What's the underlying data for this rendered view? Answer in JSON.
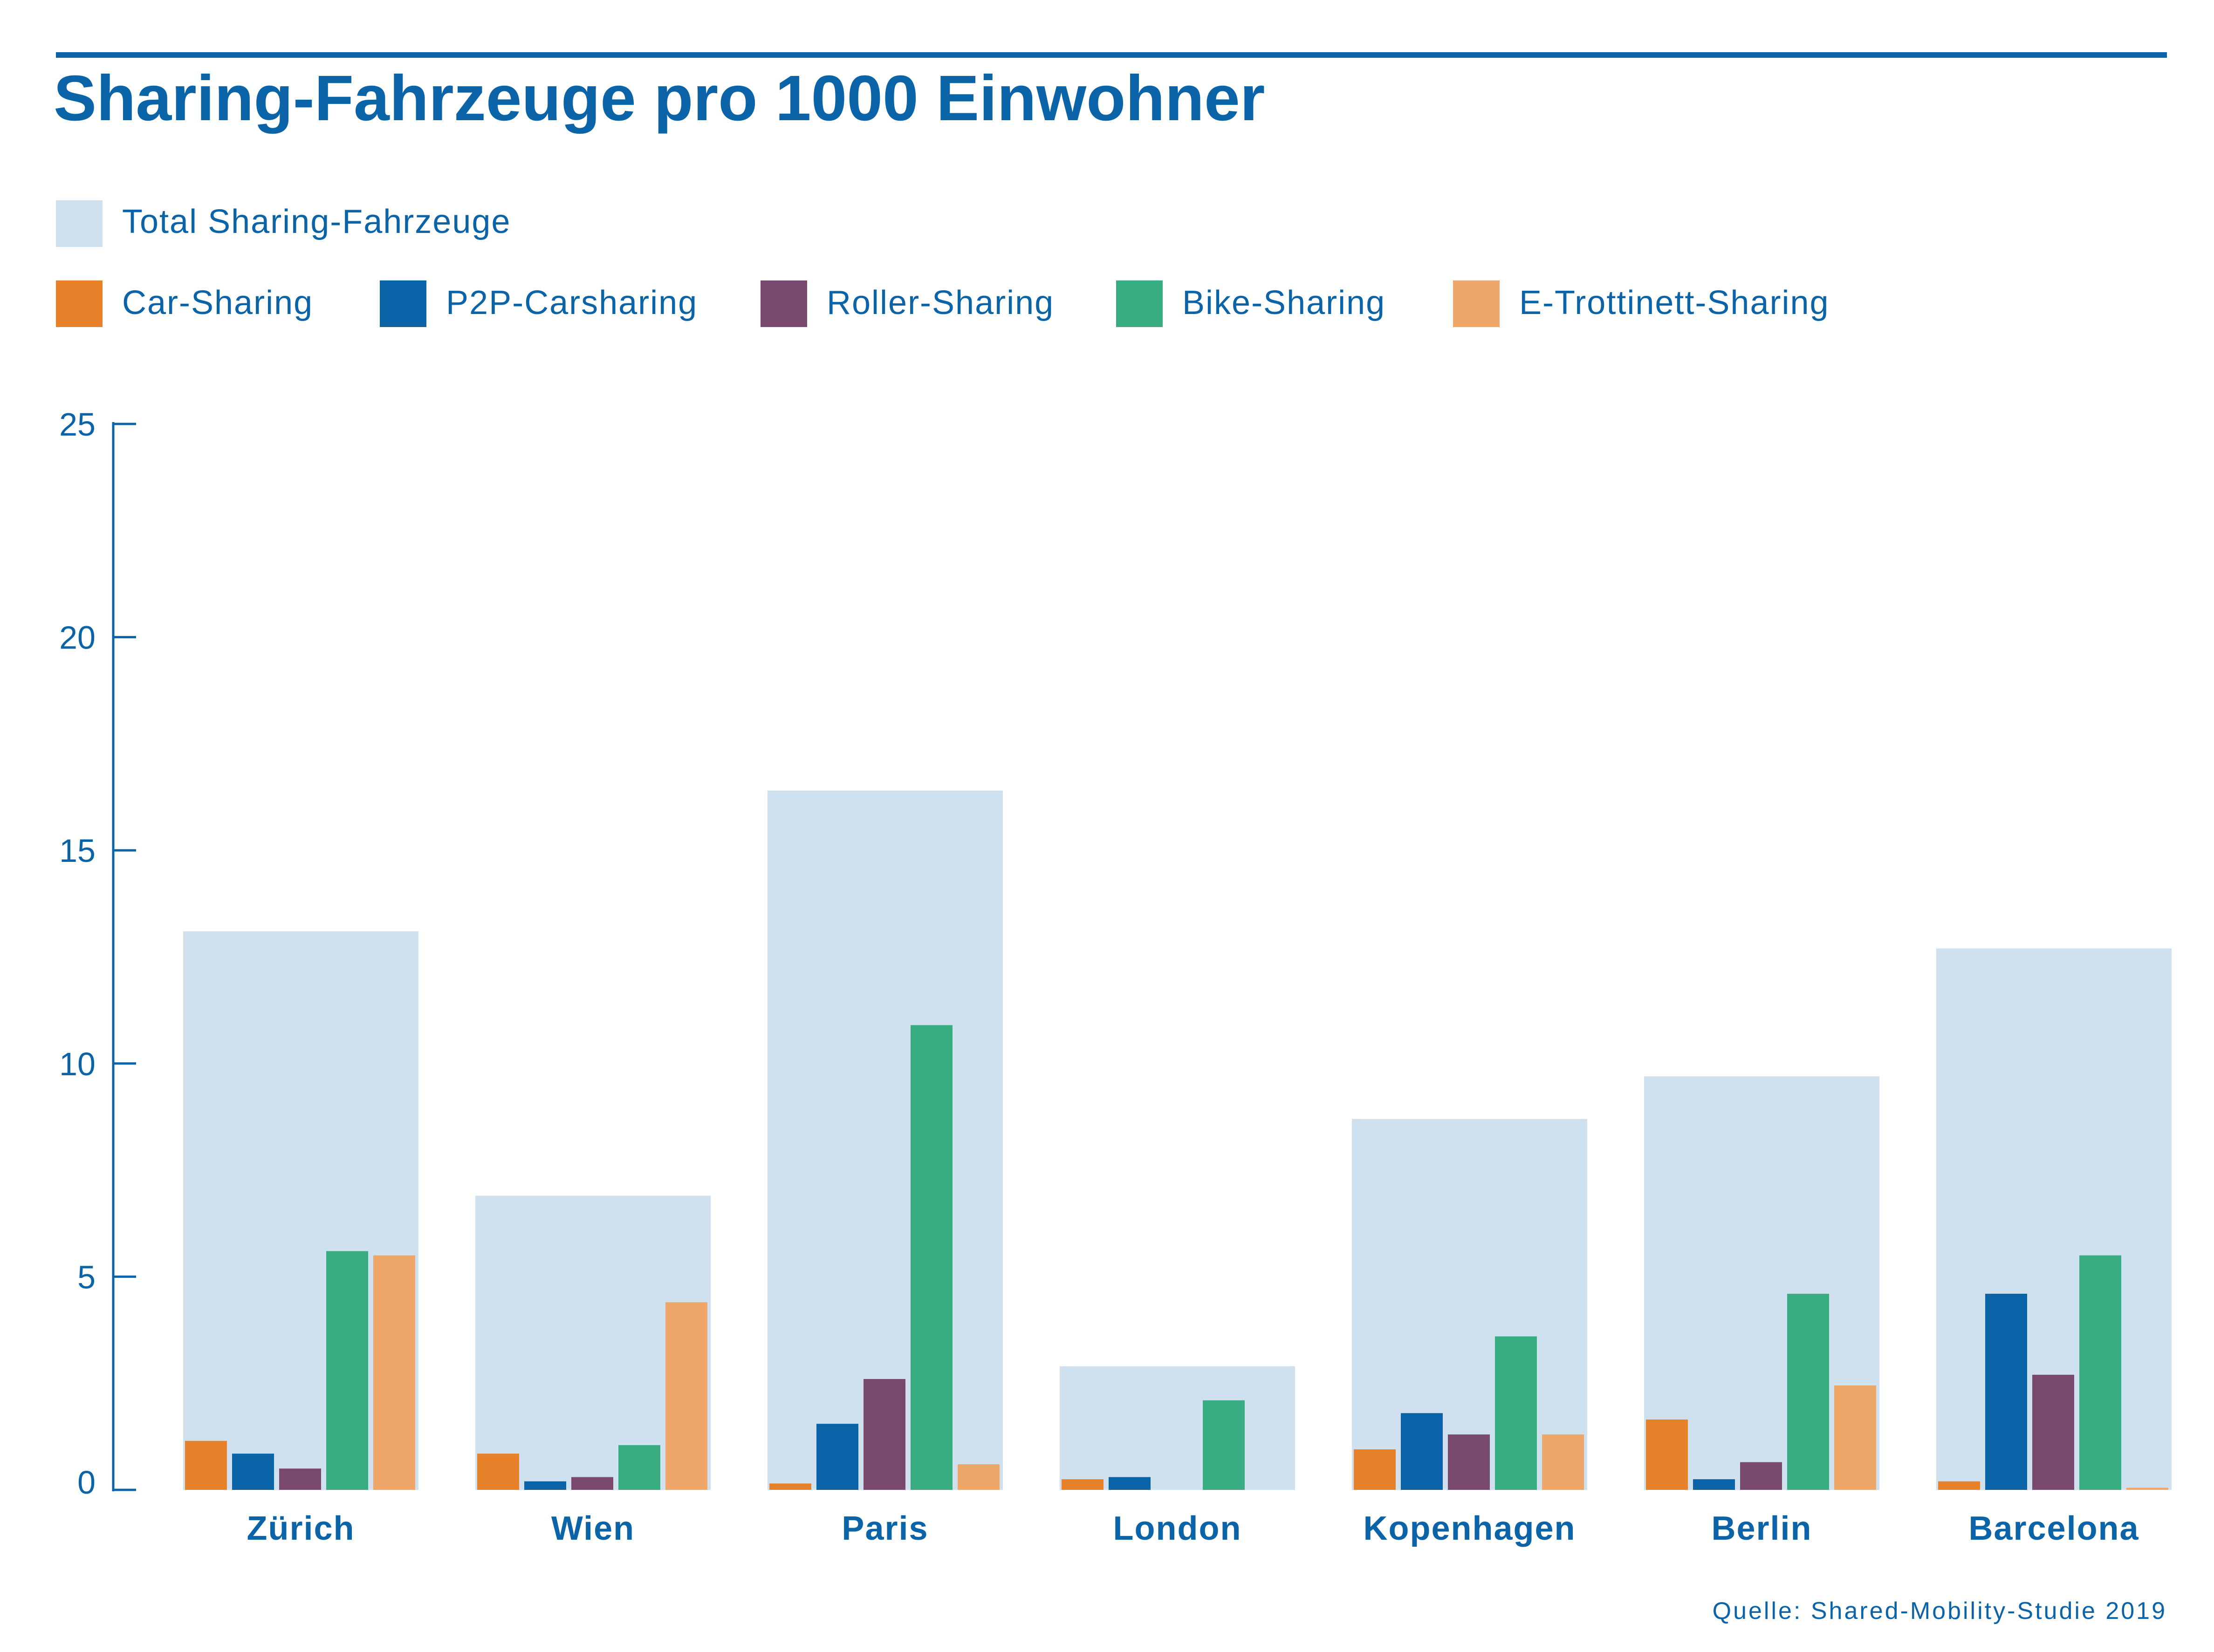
{
  "header": {
    "title": "Sharing-Fahrzeuge pro 1000 Einwohner",
    "source": "Quelle: Shared-Mobility-Studie 2019"
  },
  "colors": {
    "title": "#0b63a8",
    "axis": "#0b63a8",
    "total": "#cfe1ee",
    "car": "#e8822a",
    "p2p": "#0b63a8",
    "roller": "#7a4a6e",
    "bike": "#38ad82",
    "escooter": "#eea769"
  },
  "chart_data": {
    "type": "bar",
    "title": "Sharing-Fahrzeuge pro 1000 Einwohner",
    "xlabel": "",
    "ylabel": "",
    "ylim": [
      0,
      25
    ],
    "yticks": [
      "0",
      "5",
      "10",
      "15",
      "20",
      "25"
    ],
    "grid": false,
    "legend_position": "top-left",
    "categories": [
      "Zürich",
      "Wien",
      "Paris",
      "London",
      "Kopenhagen",
      "Berlin",
      "Barcelona"
    ],
    "total": {
      "name": "Total Sharing-Fahrzeuge",
      "color": "#cfe1ee",
      "values": [
        13.1,
        6.9,
        16.4,
        2.9,
        8.7,
        9.7,
        12.7
      ]
    },
    "series": [
      {
        "name": "Car-Sharing",
        "color": "#e8822a",
        "values": [
          1.15,
          0.85,
          0.15,
          0.25,
          0.95,
          1.65,
          0.2
        ]
      },
      {
        "name": "P2P-Carsharing",
        "color": "#0b63a8",
        "values": [
          0.85,
          0.2,
          1.55,
          0.3,
          1.8,
          0.25,
          4.6
        ]
      },
      {
        "name": "Roller-Sharing",
        "color": "#7a4a6e",
        "values": [
          0.5,
          0.3,
          2.6,
          0,
          1.3,
          0.65,
          2.7
        ]
      },
      {
        "name": "Bike-Sharing",
        "color": "#38ad82",
        "values": [
          5.6,
          1.05,
          10.9,
          2.1,
          3.6,
          4.6,
          5.5
        ]
      },
      {
        "name": "E-Trottinett-Sharing",
        "color": "#eea769",
        "values": [
          5.5,
          4.4,
          0.6,
          0,
          1.3,
          2.45,
          0.05
        ]
      }
    ]
  }
}
